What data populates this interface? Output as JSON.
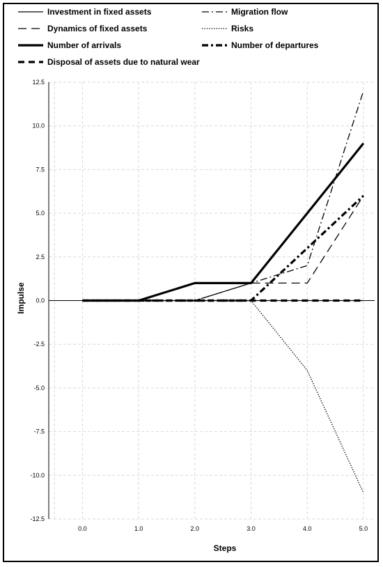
{
  "chart_data": {
    "type": "line",
    "title": "",
    "xlabel": "Steps",
    "ylabel": "Impulse",
    "xlim": [
      -0.6,
      5.2
    ],
    "ylim": [
      -12.5,
      12.5
    ],
    "x_ticks": [
      0,
      1,
      2,
      3,
      4,
      5
    ],
    "x_tick_labels": [
      "0.0",
      "1.0",
      "2.0",
      "3.0",
      "4.0",
      "5.0"
    ],
    "y_ticks": [
      12.5,
      10,
      7.5,
      5,
      2.5,
      0,
      -2.5,
      -5,
      -7.5,
      -10,
      -12.5
    ],
    "y_tick_labels": [
      "12.5",
      "10.0",
      "7.5",
      "5.0",
      "2.5",
      "0.0",
      "-2.5",
      "-5.0",
      "-7.5",
      "-10.0",
      "-12.5"
    ],
    "grid": true,
    "legend_position": "top",
    "x": [
      0,
      1,
      2,
      3,
      4,
      5
    ],
    "series": [
      {
        "name": "Investment in fixed assets",
        "values": [
          0,
          0,
          0,
          0,
          0,
          0
        ],
        "style": "solid",
        "width": 1.3
      },
      {
        "name": "Migration flow",
        "values": [
          0,
          0,
          0,
          1,
          2,
          12
        ],
        "style": "dashdot",
        "width": 1.3
      },
      {
        "name": "Dynamics of  fixed assets",
        "values": [
          0,
          0,
          0,
          1,
          1,
          6
        ],
        "style": "dashed",
        "width": 1.3
      },
      {
        "name": "Risks",
        "values": [
          0,
          0,
          0,
          0,
          -4,
          -11
        ],
        "style": "dotted",
        "width": 1.3
      },
      {
        "name": "Number of arrivals",
        "values": [
          0,
          0,
          1,
          1,
          5,
          9
        ],
        "style": "solid",
        "width": 3.2
      },
      {
        "name": "Number of departures",
        "values": [
          0,
          0,
          0,
          0,
          3,
          6
        ],
        "style": "dashdot",
        "width": 3.2
      },
      {
        "name": "Disposal of  assets due to natural wear",
        "values": [
          0,
          0,
          0,
          0,
          0,
          0
        ],
        "style": "dashed",
        "width": 3.2
      }
    ],
    "colors": {
      "line": "#000000",
      "grid": "#d9d9d9"
    }
  }
}
